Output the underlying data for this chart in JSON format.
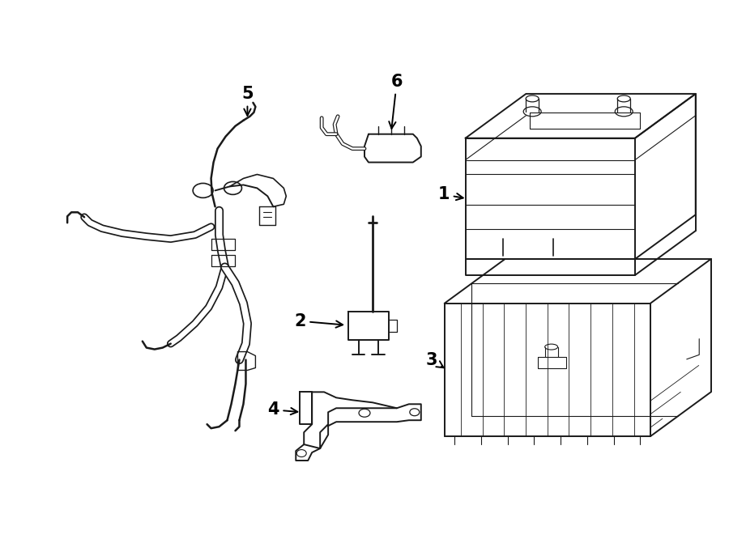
{
  "background_color": "#ffffff",
  "line_color": "#1a1a1a",
  "line_width": 1.4,
  "label_fontsize": 15,
  "figsize": [
    9.0,
    6.61
  ],
  "dpi": 100
}
